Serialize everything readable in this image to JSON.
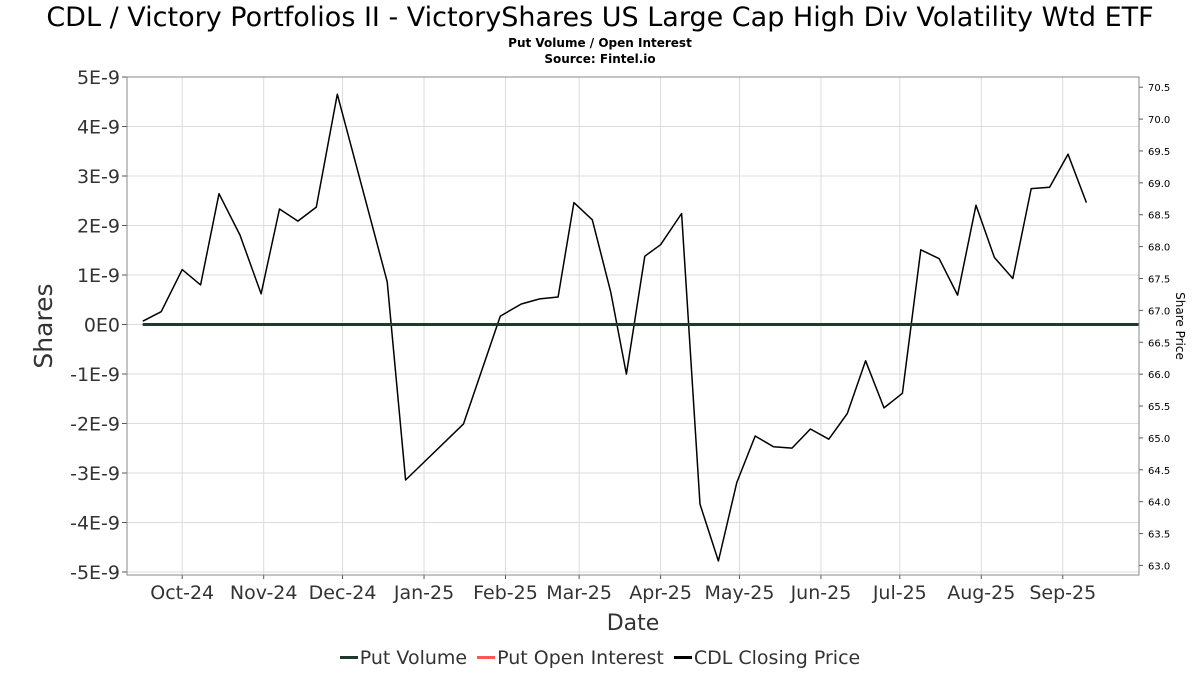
{
  "header": {
    "title": "CDL / Victory Portfolios II - VictoryShares US Large Cap High Div Volatility Wtd ETF",
    "subtitle": "Put Volume / Open Interest",
    "source": "Source: Fintel.io"
  },
  "chart_data": {
    "type": "line",
    "xlabel": "Date",
    "ylabel": "Shares",
    "y2label": "Share Price",
    "grid": true,
    "legend_position": "bottom-center",
    "x_range": [
      "2024-09-10",
      "2025-09-30"
    ],
    "x_tick_labels": [
      {
        "label": "Oct-24",
        "date": "2024-10-01"
      },
      {
        "label": "Nov-24",
        "date": "2024-11-01"
      },
      {
        "label": "Dec-24",
        "date": "2024-12-01"
      },
      {
        "label": "Jan-25",
        "date": "2025-01-01"
      },
      {
        "label": "Feb-25",
        "date": "2025-02-01"
      },
      {
        "label": "Mar-25",
        "date": "2025-03-01"
      },
      {
        "label": "Apr-25",
        "date": "2025-04-01"
      },
      {
        "label": "May-25",
        "date": "2025-05-01"
      },
      {
        "label": "Jun-25",
        "date": "2025-06-01"
      },
      {
        "label": "Jul-25",
        "date": "2025-07-01"
      },
      {
        "label": "Aug-25",
        "date": "2025-08-01"
      },
      {
        "label": "Sep-25",
        "date": "2025-09-01"
      }
    ],
    "y_left": {
      "range": [
        -5e-09,
        5e-09
      ],
      "tick_values": [
        5e-09,
        4e-09,
        3e-09,
        2e-09,
        1e-09,
        0,
        -1e-09,
        -2e-09,
        -3e-09,
        -4e-09,
        -5e-09
      ],
      "tick_labels": [
        "5E-9",
        "4E-9",
        "3E-9",
        "2E-9",
        "1E-9",
        "0E0",
        "-1E-9",
        "-2E-9",
        "-3E-9",
        "-4E-9",
        "-5E-9"
      ]
    },
    "y_right": {
      "range": [
        62.85,
        70.66
      ],
      "tick_values": [
        63.0,
        63.5,
        64.0,
        64.5,
        65.0,
        65.5,
        66.0,
        66.5,
        67.0,
        67.5,
        68.0,
        68.5,
        69.0,
        69.5,
        70.0,
        70.5
      ],
      "tick_labels": [
        "63.0",
        "63.5",
        "64.0",
        "64.5",
        "65.0",
        "65.5",
        "66.0",
        "66.5",
        "67.0",
        "67.5",
        "68.0",
        "68.5",
        "69.0",
        "69.5",
        "70.0",
        "70.5"
      ]
    },
    "series": [
      {
        "name": "Put Volume",
        "color": "#1e3a2a",
        "axis": "left",
        "x": [
          "2024-09-16",
          "2025-09-30"
        ],
        "y": [
          0,
          0
        ]
      },
      {
        "name": "Put Open Interest",
        "color": "#ff5555",
        "axis": "left",
        "x": [
          "2024-09-16",
          "2025-09-30"
        ],
        "y": [
          0,
          0
        ]
      },
      {
        "name": "CDL Closing Price",
        "color": "#000000",
        "axis": "right",
        "x": [
          "2024-09-16",
          "2024-09-23",
          "2024-10-01",
          "2024-10-08",
          "2024-10-15",
          "2024-10-23",
          "2024-10-31",
          "2024-11-07",
          "2024-11-14",
          "2024-11-21",
          "2024-11-29",
          "2024-12-18",
          "2024-12-25",
          "2025-01-16",
          "2025-01-30",
          "2025-02-07",
          "2025-02-14",
          "2025-02-21",
          "2025-02-27",
          "2025-03-06",
          "2025-03-13",
          "2025-03-19",
          "2025-03-26",
          "2025-04-01",
          "2025-04-09",
          "2025-04-16",
          "2025-04-23",
          "2025-04-30",
          "2025-05-07",
          "2025-05-14",
          "2025-05-21",
          "2025-05-28",
          "2025-06-04",
          "2025-06-11",
          "2025-06-18",
          "2025-06-25",
          "2025-07-02",
          "2025-07-09",
          "2025-07-16",
          "2025-07-23",
          "2025-07-30",
          "2025-08-06",
          "2025-08-13",
          "2025-08-20",
          "2025-08-27",
          "2025-09-03",
          "2025-09-10"
        ],
        "y": [
          66.83,
          66.98,
          67.64,
          67.4,
          68.83,
          68.18,
          67.26,
          68.59,
          68.4,
          68.62,
          70.39,
          67.45,
          64.34,
          65.22,
          66.91,
          67.1,
          67.18,
          67.21,
          68.69,
          68.42,
          67.29,
          66.0,
          67.85,
          68.03,
          68.52,
          63.96,
          63.07,
          64.3,
          65.03,
          64.86,
          64.84,
          65.14,
          64.98,
          65.38,
          66.21,
          65.47,
          65.7,
          67.95,
          67.81,
          67.24,
          68.65,
          67.83,
          67.5,
          68.91,
          68.93,
          69.45,
          68.69
        ]
      }
    ]
  }
}
